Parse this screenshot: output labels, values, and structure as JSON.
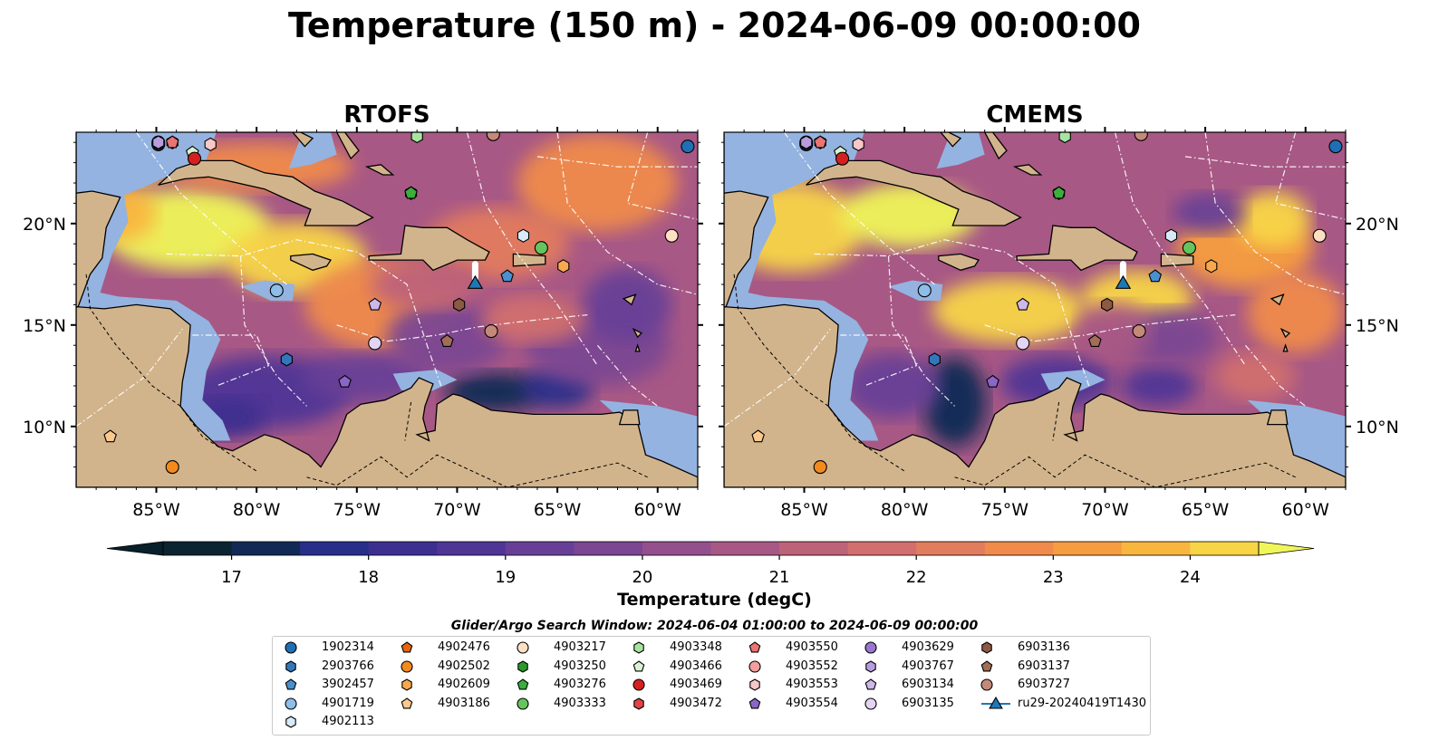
{
  "title": "Temperature (150 m) - 2024-06-09 00:00:00",
  "panels": [
    {
      "id": "rtofs",
      "title": "RTOFS"
    },
    {
      "id": "cmems",
      "title": "CMEMS"
    }
  ],
  "map": {
    "lon_range": [
      -89,
      -58
    ],
    "lat_range": [
      7,
      24.5
    ],
    "lon_ticks": [
      -85,
      -80,
      -75,
      -70,
      -65,
      -60
    ],
    "lon_tick_labels": [
      "85°W",
      "80°W",
      "75°W",
      "70°W",
      "65°W",
      "60°W"
    ],
    "lat_ticks": [
      10,
      15,
      20
    ],
    "lat_tick_labels": [
      "10°N",
      "15°N",
      "20°N"
    ],
    "colors": {
      "land": "#d2b48c",
      "shelf": "#94b3e0",
      "deep_ocean": "#0b2436",
      "contour": "#ffffff",
      "coast": "#000000"
    }
  },
  "colorbar": {
    "title": "Temperature (degC)",
    "min": 16.5,
    "max": 24.5,
    "step": 0.5,
    "tick_values": [
      17,
      18,
      19,
      20,
      21,
      22,
      23,
      24
    ],
    "tick_labels": [
      "17",
      "18",
      "19",
      "20",
      "21",
      "22",
      "23",
      "24"
    ],
    "extend": "both",
    "colors": [
      "#0c2331",
      "#102a55",
      "#272f8a",
      "#3d2f8f",
      "#4f3696",
      "#673f97",
      "#7c4693",
      "#94508d",
      "#a85885",
      "#be627a",
      "#d26f6e",
      "#e27c5e",
      "#f08b4c",
      "#f79d41",
      "#f9b63f",
      "#f8d547"
    ],
    "under_color": "#08202c",
    "over_color": "#f0f659"
  },
  "legend": {
    "title": "Glider/Argo Search Window: 2024-06-04 01:00:00 to 2024-06-09 00:00:00",
    "items": [
      {
        "label": "1902314",
        "marker": "circle",
        "color": "#1f6fb4"
      },
      {
        "label": "2903766",
        "marker": "hexagon",
        "color": "#3377bb"
      },
      {
        "label": "3902457",
        "marker": "pentagon",
        "color": "#4a90d0"
      },
      {
        "label": "4901719",
        "marker": "circle",
        "color": "#8dbde8"
      },
      {
        "label": "4902113",
        "marker": "hexagon",
        "color": "#d8eaf8"
      },
      {
        "label": "4902476",
        "marker": "pentagon",
        "color": "#e8650c"
      },
      {
        "label": "4902502",
        "marker": "circle",
        "color": "#f28a1e"
      },
      {
        "label": "4902609",
        "marker": "hexagon",
        "color": "#f8a84e"
      },
      {
        "label": "4903186",
        "marker": "pentagon",
        "color": "#fbc98e"
      },
      {
        "label": "4903217",
        "marker": "circle",
        "color": "#fde0c4"
      },
      {
        "label": "4903250",
        "marker": "hexagon",
        "color": "#2a9a2a"
      },
      {
        "label": "4903276",
        "marker": "pentagon",
        "color": "#3bae3b"
      },
      {
        "label": "4903333",
        "marker": "circle",
        "color": "#66c45e"
      },
      {
        "label": "4903348",
        "marker": "hexagon",
        "color": "#a7e4a0"
      },
      {
        "label": "4903466",
        "marker": "pentagon",
        "color": "#d8f3d1"
      },
      {
        "label": "4903469",
        "marker": "circle",
        "color": "#d42020"
      },
      {
        "label": "4903472",
        "marker": "hexagon",
        "color": "#e04545"
      },
      {
        "label": "4903550",
        "marker": "pentagon",
        "color": "#ea7373"
      },
      {
        "label": "4903552",
        "marker": "circle",
        "color": "#f19f9f"
      },
      {
        "label": "4903553",
        "marker": "hexagon",
        "color": "#f8c7c7"
      },
      {
        "label": "4903554",
        "marker": "pentagon",
        "color": "#8a66c6"
      },
      {
        "label": "4903629",
        "marker": "circle",
        "color": "#9b76d0"
      },
      {
        "label": "4903767",
        "marker": "hexagon",
        "color": "#b79ddf"
      },
      {
        "label": "6903134",
        "marker": "pentagon",
        "color": "#cdb8ea"
      },
      {
        "label": "6903135",
        "marker": "circle",
        "color": "#e3d4f3"
      },
      {
        "label": "6903136",
        "marker": "hexagon",
        "color": "#8c5a43"
      },
      {
        "label": "6903137",
        "marker": "pentagon",
        "color": "#a26e57"
      },
      {
        "label": "6903727",
        "marker": "circle",
        "color": "#c48a79"
      },
      {
        "label": "ru29-20240419T1430",
        "marker": "triangle-line",
        "color": "#1f77b4"
      }
    ]
  },
  "floats": [
    {
      "label": "1902314",
      "lon": -58.5,
      "lat": 23.8
    },
    {
      "label": "2903766",
      "lon": -78.5,
      "lat": 13.3
    },
    {
      "label": "3902457",
      "lon": -67.5,
      "lat": 17.4
    },
    {
      "label": "4901719",
      "lon": -79.0,
      "lat": 16.7
    },
    {
      "label": "4902113",
      "lon": -66.7,
      "lat": 19.4
    },
    {
      "label": "4902476",
      "lon": -84.2,
      "lat": 8.0
    },
    {
      "label": "4902502",
      "lon": -84.2,
      "lat": 8.0
    },
    {
      "label": "4902609",
      "lon": -64.7,
      "lat": 17.9
    },
    {
      "label": "4903186",
      "lon": -87.3,
      "lat": 9.5
    },
    {
      "label": "4903217",
      "lon": -59.3,
      "lat": 19.4
    },
    {
      "label": "4903250",
      "lon": -72.3,
      "lat": 21.5
    },
    {
      "label": "4903276",
      "lon": -72.3,
      "lat": 21.5
    },
    {
      "label": "4903333",
      "lon": -65.8,
      "lat": 18.8
    },
    {
      "label": "4903348",
      "lon": -72.0,
      "lat": 24.3
    },
    {
      "label": "4903466",
      "lon": -83.2,
      "lat": 23.5
    },
    {
      "label": "4903469",
      "lon": -83.1,
      "lat": 23.2
    },
    {
      "label": "4903472",
      "lon": -84.2,
      "lat": 24.0
    },
    {
      "label": "4903550",
      "lon": -84.2,
      "lat": 24.0
    },
    {
      "label": "4903552",
      "lon": -84.9,
      "lat": 23.9
    },
    {
      "label": "4903553",
      "lon": -82.3,
      "lat": 23.9
    },
    {
      "label": "4903554",
      "lon": -84.9,
      "lat": 23.9
    },
    {
      "label": "4903629",
      "lon": -84.9,
      "lat": 24.0
    },
    {
      "label": "4903767",
      "lon": -84.9,
      "lat": 24.0
    },
    {
      "label": "6903134",
      "lon": -74.1,
      "lat": 16.0
    },
    {
      "label": "6903135",
      "lon": -74.1,
      "lat": 14.1
    },
    {
      "label": "6903136",
      "lon": -69.9,
      "lat": 16.0
    },
    {
      "label": "6903137",
      "lon": -70.5,
      "lat": 14.2
    },
    {
      "label": "6903727",
      "lon": -68.2,
      "lat": 24.4
    },
    {
      "label": "4903554",
      "lon": -75.6,
      "lat": 12.2
    },
    {
      "label": "6903727",
      "lon": -68.3,
      "lat": 14.7
    }
  ],
  "glider": {
    "label": "ru29-20240419T1430",
    "lon": -69.1,
    "lat": 17.1
  }
}
